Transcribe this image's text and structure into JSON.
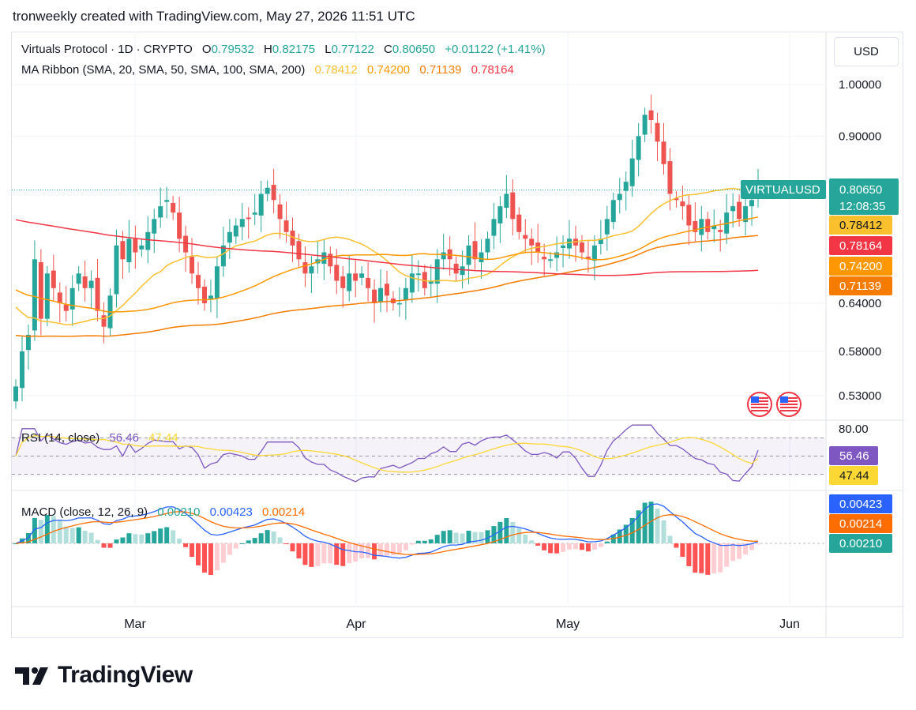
{
  "header": {
    "attribution": "tronweekly created with TradingView.com, May 27, 2026 11:51 UTC"
  },
  "toolbar": {
    "currency_label": "USD"
  },
  "legend": {
    "symbol": "Virtuals Protocol · 1D · CRYPTO",
    "open_label": "O",
    "open_value": "0.79532",
    "high_label": "H",
    "high_value": "0.82175",
    "low_label": "L",
    "low_value": "0.77122",
    "close_label": "C",
    "close_value": "0.80650",
    "change": "+0.01122 (+1.41%)",
    "ma_title": "MA Ribbon (SMA, 20, SMA, 50, SMA, 100, SMA, 200)",
    "ma_values": [
      "0.78412",
      "0.74200",
      "0.71139",
      "0.78164"
    ],
    "rsi_title": "RSI (14, close)",
    "rsi_values": [
      "56.46",
      "47.44"
    ],
    "macd_title": "MACD (close, 12, 26, 9)",
    "macd_values": [
      "0.00210",
      "0.00423",
      "0.00214"
    ]
  },
  "price_scale": {
    "ticks": [
      "1.00000",
      "0.90000",
      "0.64000",
      "0.58000",
      "0.53000"
    ],
    "ticker_label": "VIRTUALUSD",
    "last_price": "0.80650",
    "countdown": "12:08:35",
    "ma_labels": [
      {
        "text": "0.78412",
        "color": "#fbc02d"
      },
      {
        "text": "0.78164",
        "color": "#f23645"
      },
      {
        "text": "0.74200",
        "color": "#ff9800"
      },
      {
        "text": "0.71139",
        "color": "#f57c00"
      }
    ]
  },
  "rsi_scale": {
    "top": "80.00",
    "rsi": "56.46",
    "ma": "47.44"
  },
  "macd_scale": {
    "macd": "0.00423",
    "signal": "0.00214",
    "hist": "0.00210"
  },
  "time_axis": [
    "Mar",
    "Apr",
    "May",
    "Jun"
  ],
  "brand": {
    "name": "TradingView"
  },
  "colors": {
    "up": "#26a69a",
    "down": "#ef5350",
    "ma20": "#fbc02d",
    "ma50": "#ff9800",
    "ma100": "#f57c00",
    "ma200": "#f23645",
    "rsi": "#7e57c2",
    "rsi_ma": "#fdd835",
    "macd": "#2962ff",
    "signal": "#ff6d00"
  },
  "chart_data": {
    "type": "candlestick",
    "interval": "1D",
    "x_start_date": "2026-02-10",
    "price_log_scale": true,
    "ylim": [
      0.51,
      1.04
    ],
    "close": [
      0.54,
      0.58,
      0.6,
      0.7,
      0.62,
      0.68,
      0.66,
      0.64,
      0.63,
      0.66,
      0.68,
      0.66,
      0.67,
      0.63,
      0.61,
      0.65,
      0.72,
      0.7,
      0.73,
      0.71,
      0.72,
      0.74,
      0.76,
      0.78,
      0.79,
      0.77,
      0.73,
      0.71,
      0.68,
      0.66,
      0.64,
      0.65,
      0.69,
      0.72,
      0.74,
      0.75,
      0.76,
      0.76,
      0.77,
      0.8,
      0.81,
      0.79,
      0.76,
      0.74,
      0.72,
      0.7,
      0.68,
      0.69,
      0.7,
      0.71,
      0.69,
      0.67,
      0.66,
      0.68,
      0.67,
      0.68,
      0.66,
      0.64,
      0.66,
      0.65,
      0.64,
      0.64,
      0.66,
      0.68,
      0.68,
      0.66,
      0.67,
      0.7,
      0.71,
      0.7,
      0.68,
      0.69,
      0.72,
      0.7,
      0.71,
      0.73,
      0.76,
      0.78,
      0.8,
      0.76,
      0.74,
      0.73,
      0.72,
      0.71,
      0.7,
      0.7,
      0.71,
      0.72,
      0.73,
      0.72,
      0.71,
      0.7,
      0.72,
      0.73,
      0.76,
      0.79,
      0.8,
      0.82,
      0.86,
      0.9,
      0.94,
      0.93,
      0.89,
      0.85,
      0.8,
      0.79,
      0.78,
      0.75,
      0.74,
      0.76,
      0.74,
      0.75,
      0.74,
      0.77,
      0.78,
      0.76,
      0.78,
      0.79,
      0.81
    ],
    "ma_values_last": {
      "sma20": 0.78412,
      "sma50": 0.742,
      "sma100": 0.71139,
      "sma200": 0.78164
    },
    "rsi_last": 56.46,
    "rsi_ma_last": 47.44,
    "rsi_levels": [
      70,
      50,
      30
    ],
    "macd_last": {
      "macd": 0.00423,
      "signal": 0.00214,
      "hist": 0.0021
    }
  }
}
